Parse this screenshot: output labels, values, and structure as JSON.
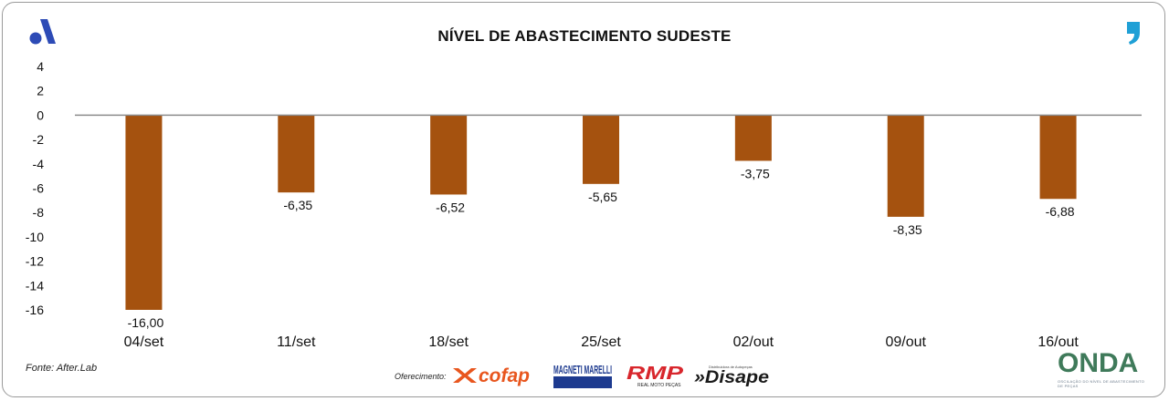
{
  "header": {
    "title": "NÍVEL DE ABASTECIMENTO SUDESTE"
  },
  "chart_data": {
    "type": "bar",
    "title": "NÍVEL DE ABASTECIMENTO SUDESTE",
    "xlabel": "",
    "ylabel": "",
    "categories": [
      "04/set",
      "11/set",
      "18/set",
      "25/set",
      "02/out",
      "09/out",
      "16/out"
    ],
    "values": [
      -16.0,
      -6.35,
      -6.52,
      -5.65,
      -3.75,
      -8.35,
      -6.88
    ],
    "value_labels": [
      "-16,00",
      "-6,35",
      "-6,52",
      "-5,65",
      "-3,75",
      "-8,35",
      "-6,88"
    ],
    "ylim": [
      -16,
      4
    ],
    "yticks": [
      4,
      2,
      0,
      -2,
      -4,
      -6,
      -8,
      -10,
      -12,
      -14,
      -16
    ],
    "bar_color": "#a5520f",
    "grid": false,
    "legend": "none"
  },
  "footer": {
    "source": "Fonte: After.Lab",
    "sponsor_label": "Oferecimento:",
    "sponsors": [
      "cofap",
      "MAGNETI MARELLI",
      "RMP",
      "»Disape"
    ],
    "rmp_sub": "REAL MOTO PEÇAS",
    "disape_sub": "Distribuidora de Autopeças",
    "onda": "ONDA",
    "onda_sub": "OSCILAÇÃO DO NÍVEL DE ABASTECIMENTO DE PEÇAS"
  },
  "colors": {
    "bar": "#a5520f",
    "zero_line": "#8c8c8c",
    "text": "#111111"
  }
}
